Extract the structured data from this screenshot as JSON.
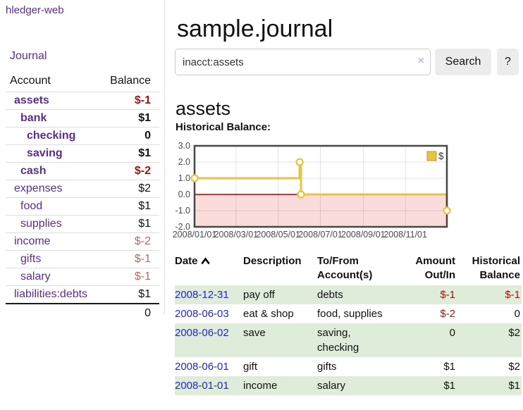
{
  "app": {
    "title": "hledger-web"
  },
  "colors": {
    "purple": "#5b2d90",
    "blue": "#2126cd",
    "neg": "#9e1414",
    "neg-soft": "#b56a6a",
    "row-green": "#deecd9",
    "btn-bg": "#ececec",
    "border-light": "#dddddd"
  },
  "sidebar": {
    "journal_label": "Journal",
    "accounts": {
      "header_account": "Account",
      "header_balance": "Balance",
      "rows": [
        {
          "name": "assets",
          "balance": "$-1",
          "indent": 0,
          "emphasis": true
        },
        {
          "name": "bank",
          "balance": "$1",
          "indent": 1,
          "emphasis": true
        },
        {
          "name": "checking",
          "balance": "0",
          "indent": 2,
          "emphasis": true
        },
        {
          "name": "saving",
          "balance": "$1",
          "indent": 2,
          "emphasis": true
        },
        {
          "name": "cash",
          "balance": "$-2",
          "indent": 1,
          "emphasis": true
        },
        {
          "name": "expenses",
          "balance": "$2",
          "indent": 0,
          "emphasis": false
        },
        {
          "name": "food",
          "balance": "$1",
          "indent": 1,
          "emphasis": false
        },
        {
          "name": "supplies",
          "balance": "$1",
          "indent": 1,
          "emphasis": false
        },
        {
          "name": "income",
          "balance": "$-2",
          "indent": 0,
          "emphasis": false
        },
        {
          "name": "gifts",
          "balance": "$-1",
          "indent": 1,
          "emphasis": false
        },
        {
          "name": "salary",
          "balance": "$-1",
          "indent": 1,
          "emphasis": false
        },
        {
          "name": "liabilities:debts",
          "balance": "$1",
          "indent": 0,
          "emphasis": false
        }
      ],
      "total": "0"
    }
  },
  "main": {
    "title": "sample.journal",
    "search": {
      "value": "inacct:assets",
      "clear_icon": "×",
      "button_label": "Search",
      "help_label": "?"
    },
    "account_heading": "assets"
  },
  "chart_data": {
    "type": "line",
    "step": true,
    "title": "Historical Balance:",
    "ylim": [
      -2,
      3
    ],
    "yticks": [
      {
        "v": 3,
        "label": "3.0"
      },
      {
        "v": 2,
        "label": "2.0"
      },
      {
        "v": 1,
        "label": "1.0"
      },
      {
        "v": 0,
        "label": "0.0"
      },
      {
        "v": -1,
        "label": "-1.0"
      },
      {
        "v": -2,
        "label": "-2.0"
      }
    ],
    "xrange": [
      "2008-01-01",
      "2008-12-31"
    ],
    "xticks": [
      {
        "date": "2008-01-01",
        "label": "2008/01/01"
      },
      {
        "date": "2008-03-01",
        "label": "2008/03/01"
      },
      {
        "date": "2008-05-01",
        "label": "2008/05/01"
      },
      {
        "date": "2008-07-01",
        "label": "2008/07/01"
      },
      {
        "date": "2008-09-01",
        "label": "2008/09/01"
      },
      {
        "date": "2008-11-01",
        "label": "2008/11/01"
      }
    ],
    "series": [
      {
        "name": "$",
        "color": "#e8c240",
        "points": [
          {
            "x": "2008-01-01",
            "y": 1
          },
          {
            "x": "2008-06-01",
            "y": 2
          },
          {
            "x": "2008-06-03",
            "y": 0
          },
          {
            "x": "2008-12-31",
            "y": -1
          }
        ]
      }
    ],
    "negative_region": {
      "from": 0,
      "to": -2,
      "color": "#fbdcdc",
      "line_color": "#a00000"
    },
    "legend": {
      "position": "top-right"
    },
    "grid": true
  },
  "register": {
    "headers": {
      "date": "Date",
      "description": "Description",
      "accounts": "To/From Account(s)",
      "amount": "Amount Out/In",
      "balance": "Historical Balance"
    },
    "rows": [
      {
        "date": "2008-12-31",
        "description": "pay off",
        "accounts": "debts",
        "amount": "$-1",
        "balance": "$-1"
      },
      {
        "date": "2008-06-03",
        "description": "eat & shop",
        "accounts": "food, supplies",
        "amount": "$-2",
        "balance": "0"
      },
      {
        "date": "2008-06-02",
        "description": "save",
        "accounts": "saving, checking",
        "amount": "0",
        "balance": "$2"
      },
      {
        "date": "2008-06-01",
        "description": "gift",
        "accounts": "gifts",
        "amount": "$1",
        "balance": "$2"
      },
      {
        "date": "2008-01-01",
        "description": "income",
        "accounts": "salary",
        "amount": "$1",
        "balance": "$1"
      }
    ]
  }
}
